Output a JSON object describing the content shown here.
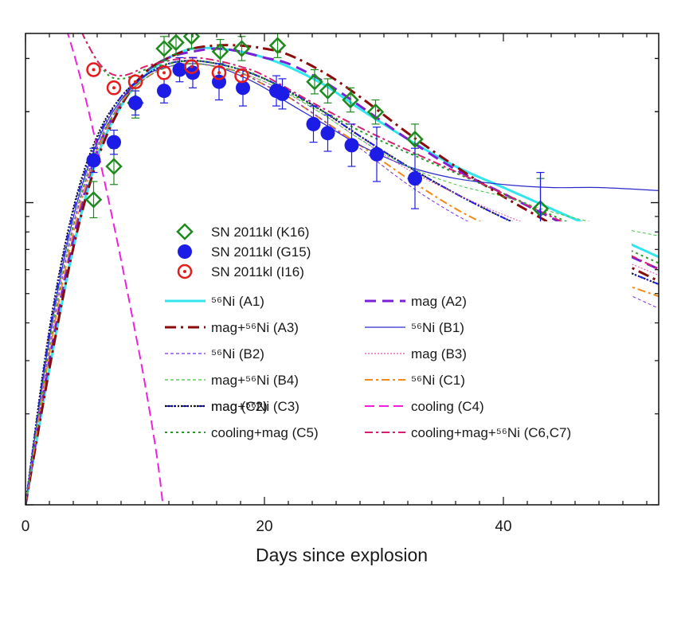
{
  "chart_data": {
    "type": "line",
    "title": "",
    "xlabel": "Days since explosion",
    "ylabel": "",
    "xlim": [
      0,
      53
    ],
    "ylog": true,
    "ylim_log10": [
      -1.0,
      0.56
    ],
    "xticks": [
      0,
      20,
      40
    ],
    "xtick_labels": [
      "0",
      "20",
      "40"
    ],
    "legend_position": "center-left",
    "observations": [
      {
        "name": "SN 2011kl (K16)",
        "marker": "diamond",
        "color": "#1e8a1e",
        "x": [
          5.7,
          7.4,
          9.2,
          11.6,
          12.6,
          13.9,
          16.3,
          18.1,
          21.1,
          24.2,
          25.3,
          27.2,
          29.3,
          32.6,
          43.1
        ],
        "y": [
          0.01,
          0.12,
          0.33,
          0.51,
          0.53,
          0.55,
          0.5,
          0.51,
          0.52,
          0.4,
          0.37,
          0.34,
          0.3,
          0.21,
          -0.02
        ],
        "err": [
          0.06,
          0.06,
          0.05,
          0.04,
          0.04,
          0.04,
          0.04,
          0.04,
          0.04,
          0.04,
          0.04,
          0.04,
          0.04,
          0.05,
          0.1
        ]
      },
      {
        "name": "SN 2011kl (G15)",
        "marker": "circle",
        "color": "#1c1ce6",
        "x": [
          5.7,
          7.4,
          9.2,
          11.6,
          12.9,
          14.0,
          16.2,
          18.2,
          21.0,
          21.5,
          24.1,
          25.3,
          27.3,
          29.4,
          32.6,
          43.1
        ],
        "y": [
          0.14,
          0.2,
          0.33,
          0.37,
          0.44,
          0.43,
          0.4,
          0.38,
          0.37,
          0.36,
          0.26,
          0.23,
          0.19,
          0.16,
          0.08,
          -0.1
        ],
        "err": [
          0.04,
          0.04,
          0.04,
          0.04,
          0.04,
          0.05,
          0.06,
          0.06,
          0.05,
          0.05,
          0.06,
          0.06,
          0.07,
          0.09,
          0.1,
          0.2
        ]
      },
      {
        "name": "SN 2011kl (I16)",
        "marker": "dotted-circle",
        "color": "#e61c1c",
        "x": [
          5.7,
          7.4,
          9.2,
          11.6,
          13.9,
          16.2,
          18.1
        ],
        "y": [
          0.44,
          0.38,
          0.4,
          0.43,
          0.45,
          0.43,
          0.42
        ],
        "err": [
          0,
          0,
          0,
          0,
          0,
          0,
          0
        ]
      }
    ],
    "series": [
      {
        "name": "⁵⁶Ni (A1)",
        "color": "#33e6ee",
        "dash": "",
        "width": 3,
        "x": [
          0,
          2,
          4,
          6,
          8,
          10,
          12,
          14,
          16,
          18,
          20,
          22,
          25,
          28,
          32,
          36,
          40,
          44,
          48,
          53
        ],
        "y": [
          -1.0,
          -0.55,
          -0.15,
          0.15,
          0.32,
          0.42,
          0.48,
          0.51,
          0.51,
          0.5,
          0.48,
          0.45,
          0.39,
          0.31,
          0.21,
          0.12,
          0.05,
          -0.02,
          -0.09,
          -0.18
        ]
      },
      {
        "name": "mag (A2)",
        "color": "#7a1fd6",
        "dash": "14,8",
        "width": 3,
        "x": [
          0,
          2,
          4,
          6,
          8,
          10,
          12,
          14,
          16,
          18,
          20,
          22,
          25,
          28,
          32,
          36,
          40,
          44,
          48,
          53
        ],
        "y": [
          -1.0,
          -0.52,
          -0.12,
          0.17,
          0.33,
          0.43,
          0.48,
          0.5,
          0.51,
          0.5,
          0.48,
          0.46,
          0.4,
          0.32,
          0.21,
          0.11,
          0.03,
          -0.05,
          -0.13,
          -0.22
        ]
      },
      {
        "name": "mag+⁵⁶Ni (A3)",
        "color": "#8b0a0a",
        "dash": "14,6,3,6",
        "width": 3,
        "x": [
          0,
          2,
          4,
          6,
          8,
          10,
          12,
          14,
          16,
          18,
          20,
          22,
          25,
          28,
          32,
          36,
          40,
          44,
          48,
          53
        ],
        "y": [
          -1.0,
          -0.55,
          -0.15,
          0.14,
          0.32,
          0.43,
          0.48,
          0.51,
          0.52,
          0.52,
          0.51,
          0.49,
          0.43,
          0.35,
          0.23,
          0.12,
          0.02,
          -0.07,
          -0.16,
          -0.26
        ]
      },
      {
        "name": "⁵⁶Ni (B1)",
        "color": "#2a2acc",
        "dash": "",
        "width": 1.2,
        "x": [
          0,
          2,
          4,
          6,
          8,
          10,
          12,
          14,
          16,
          18,
          20,
          22,
          25,
          28,
          32,
          36,
          40,
          44,
          48,
          53
        ],
        "y": [
          -1.0,
          -0.45,
          -0.05,
          0.2,
          0.34,
          0.42,
          0.45,
          0.46,
          0.45,
          0.42,
          0.38,
          0.33,
          0.26,
          0.19,
          0.12,
          0.08,
          0.06,
          0.05,
          0.05,
          0.04
        ]
      },
      {
        "name": "⁵⁶Ni (B2)",
        "color": "#7a2ee6",
        "dash": "4,3",
        "width": 1,
        "x": [
          0,
          2,
          4,
          6,
          8,
          10,
          12,
          14,
          16,
          18,
          20,
          22,
          25,
          28,
          32,
          36,
          40,
          44,
          48,
          53
        ],
        "y": [
          -1.0,
          -0.48,
          -0.08,
          0.18,
          0.33,
          0.41,
          0.45,
          0.46,
          0.45,
          0.43,
          0.39,
          0.35,
          0.27,
          0.18,
          0.06,
          -0.04,
          -0.12,
          -0.19,
          -0.26,
          -0.35
        ]
      },
      {
        "name": "mag (B3)",
        "color": "#e64ab0",
        "dash": "2,2",
        "width": 1,
        "x": [
          0,
          2,
          4,
          6,
          8,
          10,
          12,
          14,
          16,
          18,
          20,
          22,
          25,
          28,
          32,
          36,
          40,
          44,
          48,
          53
        ],
        "y": [
          -1.0,
          -0.47,
          -0.07,
          0.19,
          0.33,
          0.41,
          0.45,
          0.46,
          0.45,
          0.43,
          0.4,
          0.36,
          0.29,
          0.21,
          0.11,
          0.03,
          -0.04,
          -0.1,
          -0.16,
          -0.24
        ]
      },
      {
        "name": "mag+⁵⁶Ni (B4)",
        "color": "#3cc43c",
        "dash": "4,3",
        "width": 1,
        "x": [
          0,
          2,
          4,
          6,
          8,
          10,
          12,
          14,
          16,
          18,
          20,
          22,
          25,
          28,
          32,
          36,
          40,
          44,
          48,
          53
        ],
        "y": [
          -1.0,
          -0.47,
          -0.07,
          0.19,
          0.33,
          0.41,
          0.45,
          0.46,
          0.45,
          0.43,
          0.4,
          0.36,
          0.29,
          0.21,
          0.12,
          0.06,
          0.02,
          -0.03,
          -0.07,
          -0.11
        ]
      },
      {
        "name": "⁵⁶Ni (C1)",
        "color": "#f08a1a",
        "dash": "10,4,3,4",
        "width": 2,
        "x": [
          0,
          2,
          4,
          6,
          8,
          10,
          12,
          14,
          16,
          18,
          20,
          22,
          25,
          28,
          32,
          36,
          40,
          44,
          48,
          53
        ],
        "y": [
          -1.0,
          -0.5,
          -0.1,
          0.17,
          0.33,
          0.41,
          0.45,
          0.46,
          0.45,
          0.43,
          0.39,
          0.35,
          0.27,
          0.19,
          0.08,
          -0.02,
          -0.1,
          -0.17,
          -0.24,
          -0.31
        ]
      },
      {
        "name": "mag (C2)",
        "color": "#2020e0",
        "dash": "8,3,2,3,2,3",
        "width": 2,
        "x": [
          0,
          2,
          4,
          6,
          8,
          10,
          12,
          14,
          16,
          18,
          20,
          22,
          25,
          28,
          32,
          36,
          40,
          44,
          48,
          53
        ],
        "y": [
          -1.0,
          -0.43,
          -0.03,
          0.21,
          0.35,
          0.42,
          0.46,
          0.47,
          0.46,
          0.44,
          0.41,
          0.37,
          0.3,
          0.22,
          0.12,
          0.03,
          -0.05,
          -0.12,
          -0.19,
          -0.27
        ]
      },
      {
        "name": "mag+⁵⁶Ni (C3)",
        "color": "#111111",
        "dash": "2,2",
        "width": 2.2,
        "x": [
          0,
          2,
          4,
          6,
          8,
          10,
          12,
          14,
          16,
          18,
          20,
          22,
          25,
          28,
          32,
          36,
          40,
          44,
          48,
          53
        ],
        "y": [
          -1.0,
          -0.42,
          -0.02,
          0.22,
          0.35,
          0.42,
          0.46,
          0.47,
          0.46,
          0.44,
          0.41,
          0.37,
          0.3,
          0.22,
          0.12,
          0.03,
          -0.05,
          -0.12,
          -0.19,
          -0.27
        ]
      },
      {
        "name": "cooling (C4)",
        "color": "#ee22dd",
        "dash": "12,6",
        "width": 2,
        "x": [
          0,
          1,
          2,
          3,
          4,
          5,
          6,
          7,
          8,
          9,
          10,
          11,
          11.5
        ],
        "y": [
          0.76,
          0.74,
          0.7,
          0.62,
          0.5,
          0.35,
          0.18,
          0.0,
          -0.19,
          -0.39,
          -0.6,
          -0.84,
          -1.0
        ]
      },
      {
        "name": "cooling+mag (C5)",
        "color": "#2a9a2a",
        "dash": "3,4",
        "width": 2,
        "x": [
          0,
          2,
          4,
          5,
          6,
          7,
          8,
          9,
          10,
          12,
          14,
          16,
          18,
          20,
          25,
          30,
          40,
          53
        ],
        "y": [
          0.76,
          0.72,
          0.62,
          0.54,
          0.47,
          0.42,
          0.41,
          0.42,
          0.44,
          0.46,
          0.47,
          0.46,
          0.44,
          0.41,
          0.3,
          0.2,
          0.03,
          -0.2
        ]
      },
      {
        "name": "cooling+mag+⁵⁶Ni (C6,C7)",
        "color": "#d4206e",
        "dash": "10,4,3,4",
        "width": 2,
        "x": [
          0,
          2,
          4,
          5,
          6,
          7,
          8,
          9,
          10,
          12,
          14,
          16,
          18,
          20,
          25,
          30,
          40,
          53
        ],
        "y": [
          0.76,
          0.72,
          0.62,
          0.54,
          0.47,
          0.43,
          0.42,
          0.43,
          0.45,
          0.47,
          0.48,
          0.47,
          0.45,
          0.42,
          0.31,
          0.21,
          0.03,
          -0.22
        ]
      }
    ]
  }
}
